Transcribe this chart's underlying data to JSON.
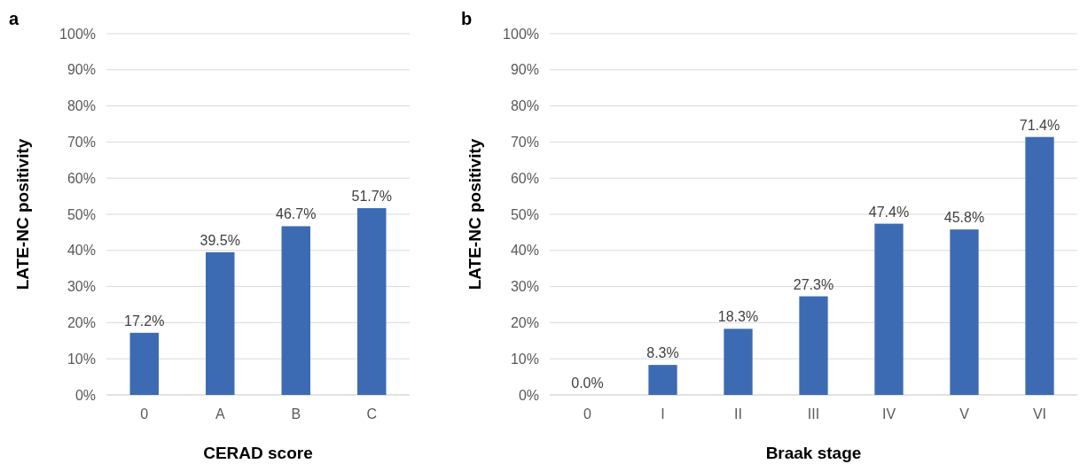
{
  "chart_data": [
    {
      "type": "bar",
      "title": "a",
      "xlabel": "CERAD score",
      "ylabel": "LATE-NC positivity",
      "categories": [
        "0",
        "A",
        "B",
        "C"
      ],
      "series": [
        {
          "color": "#3d6bb3",
          "values": [
            17.2,
            39.5,
            46.7,
            51.7
          ],
          "value_labels": [
            "17.2%",
            "39.5%",
            "46.7%",
            "51.7%"
          ]
        }
      ],
      "ylim": [
        0,
        100
      ],
      "yticks": [
        {
          "value": 0,
          "label": "0%"
        },
        {
          "value": 10,
          "label": "10%"
        },
        {
          "value": 20,
          "label": "20%"
        },
        {
          "value": 30,
          "label": "30%"
        },
        {
          "value": 40,
          "label": "40%"
        },
        {
          "value": 50,
          "label": "50%"
        },
        {
          "value": 60,
          "label": "60%"
        },
        {
          "value": 70,
          "label": "70%"
        },
        {
          "value": 80,
          "label": "80%"
        },
        {
          "value": 90,
          "label": "90%"
        },
        {
          "value": 100,
          "label": "100%"
        }
      ],
      "grid": "y"
    },
    {
      "type": "bar",
      "title": "b",
      "xlabel": "Braak stage",
      "ylabel": "LATE-NC positivity",
      "categories": [
        "0",
        "I",
        "II",
        "III",
        "IV",
        "V",
        "VI"
      ],
      "series": [
        {
          "color": "#3d6bb3",
          "values": [
            0.0,
            8.3,
            18.3,
            27.3,
            47.4,
            45.8,
            71.4
          ],
          "value_labels": [
            "0.0%",
            "8.3%",
            "18.3%",
            "27.3%",
            "47.4%",
            "45.8%",
            "71.4%"
          ]
        }
      ],
      "ylim": [
        0,
        100
      ],
      "yticks": [
        {
          "value": 0,
          "label": "0%"
        },
        {
          "value": 10,
          "label": "10%"
        },
        {
          "value": 20,
          "label": "20%"
        },
        {
          "value": 30,
          "label": "30%"
        },
        {
          "value": 40,
          "label": "40%"
        },
        {
          "value": 50,
          "label": "50%"
        },
        {
          "value": 60,
          "label": "60%"
        },
        {
          "value": 70,
          "label": "70%"
        },
        {
          "value": 80,
          "label": "80%"
        },
        {
          "value": 90,
          "label": "90%"
        },
        {
          "value": 100,
          "label": "100%"
        }
      ],
      "grid": "y"
    }
  ]
}
